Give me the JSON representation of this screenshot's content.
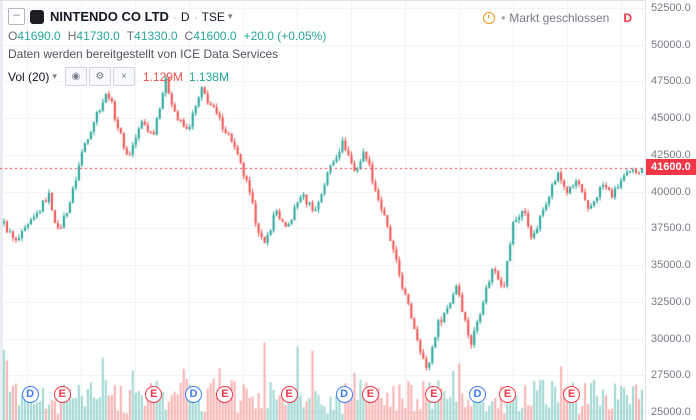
{
  "colors": {
    "up": "#26a69a",
    "down": "#ef5350",
    "vol_up": "rgba(38,166,154,0.45)",
    "vol_down": "rgba(239,83,80,0.45)",
    "accent_red": "#f23645",
    "badge_bg": "#f23645",
    "grid": "#eef1f5",
    "axis_text": "#787b86",
    "title_text": "#131722",
    "event_d": "#3d7ef0",
    "event_e": "#f23645",
    "status_orange": "#f7931a"
  },
  "icons": {
    "collapse_minus": "–",
    "chevron_down": "▾",
    "eye": "◉",
    "gear": "⚙",
    "close": "×",
    "bullet": "•"
  },
  "header": {
    "symbol_title": "NINTENDO CO LTD",
    "separator": "·",
    "interval": "D",
    "exchange": "TSE",
    "ohlc": {
      "o_label": "O",
      "o": "41690.0",
      "h_label": "H",
      "h": "41730.0",
      "l_label": "T",
      "l": "41330.0",
      "c_label": "C",
      "c": "41600.0",
      "change": "+20.0 (+0.05%)"
    },
    "data_notice": "Daten werden bereitgestellt von ICE Data Services",
    "indicator": {
      "label": "Vol (20)",
      "value_current": "1.129M",
      "value_ma": "1.138M"
    },
    "market_status": {
      "text": "Markt geschlossen",
      "interval_letter": "D"
    }
  },
  "price_axis": {
    "labels": [
      "52500.0",
      "50000.0",
      "47500.0",
      "45000.0",
      "42500.0",
      "40000.0",
      "37500.0",
      "35000.0",
      "32500.0",
      "30000.0",
      "27500.0",
      "25000.0"
    ],
    "current_price": "41600.0"
  },
  "chart_data": {
    "type": "candlestick",
    "title": "NINTENDO CO LTD D TSE",
    "symbol": "NINTENDO CO LTD",
    "exchange": "TSE",
    "interval": "D",
    "ohlc": {
      "open": 41690.0,
      "high": 41730.0,
      "low": 41330.0,
      "close": 41600.0,
      "change": 20.0,
      "change_pct": 0.05
    },
    "volume": {
      "current": "1.129M",
      "ma20": "1.138M"
    },
    "ylim": [
      25000,
      52500
    ],
    "y_ticks": [
      52500,
      50000,
      47500,
      45000,
      42500,
      40000,
      37500,
      35000,
      32500,
      30000,
      27500,
      25000
    ],
    "current_price": 41600,
    "last_price": 41600,
    "grid": true,
    "num_candles": 214,
    "keypoints": [
      [
        0.0,
        37800
      ],
      [
        0.018,
        36500
      ],
      [
        0.045,
        38000
      ],
      [
        0.07,
        39800
      ],
      [
        0.085,
        37200
      ],
      [
        0.105,
        39500
      ],
      [
        0.124,
        43000
      ],
      [
        0.147,
        45500
      ],
      [
        0.163,
        46800
      ],
      [
        0.178,
        44500
      ],
      [
        0.194,
        42300
      ],
      [
        0.217,
        44800
      ],
      [
        0.233,
        43800
      ],
      [
        0.253,
        47600
      ],
      [
        0.271,
        45000
      ],
      [
        0.287,
        44100
      ],
      [
        0.31,
        46900
      ],
      [
        0.333,
        45200
      ],
      [
        0.357,
        43500
      ],
      [
        0.38,
        40600
      ],
      [
        0.395,
        38000
      ],
      [
        0.408,
        36200
      ],
      [
        0.426,
        38800
      ],
      [
        0.442,
        37300
      ],
      [
        0.465,
        39800
      ],
      [
        0.488,
        38700
      ],
      [
        0.512,
        41800
      ],
      [
        0.532,
        43400
      ],
      [
        0.55,
        41300
      ],
      [
        0.566,
        42800
      ],
      [
        0.581,
        40300
      ],
      [
        0.597,
        38100
      ],
      [
        0.612,
        35600
      ],
      [
        0.628,
        33000
      ],
      [
        0.643,
        30800
      ],
      [
        0.663,
        27700
      ],
      [
        0.679,
        30900
      ],
      [
        0.698,
        32300
      ],
      [
        0.71,
        33800
      ],
      [
        0.721,
        31500
      ],
      [
        0.732,
        29600
      ],
      [
        0.752,
        32800
      ],
      [
        0.767,
        34900
      ],
      [
        0.783,
        33500
      ],
      [
        0.798,
        37800
      ],
      [
        0.814,
        38800
      ],
      [
        0.829,
        36700
      ],
      [
        0.853,
        39800
      ],
      [
        0.868,
        41200
      ],
      [
        0.884,
        39900
      ],
      [
        0.899,
        40800
      ],
      [
        0.915,
        38600
      ],
      [
        0.938,
        40500
      ],
      [
        0.954,
        39700
      ],
      [
        0.969,
        40900
      ],
      [
        0.984,
        41300
      ],
      [
        1.0,
        41600
      ]
    ],
    "events": [
      [
        "D",
        0.043
      ],
      [
        "E",
        0.093
      ],
      [
        "E",
        0.236
      ],
      [
        "D",
        0.298
      ],
      [
        "E",
        0.347
      ],
      [
        "E",
        0.447
      ],
      [
        "D",
        0.533
      ],
      [
        "E",
        0.574
      ],
      [
        "E",
        0.673
      ],
      [
        "D",
        0.741
      ],
      [
        "E",
        0.788
      ],
      [
        "E",
        0.888
      ]
    ]
  }
}
